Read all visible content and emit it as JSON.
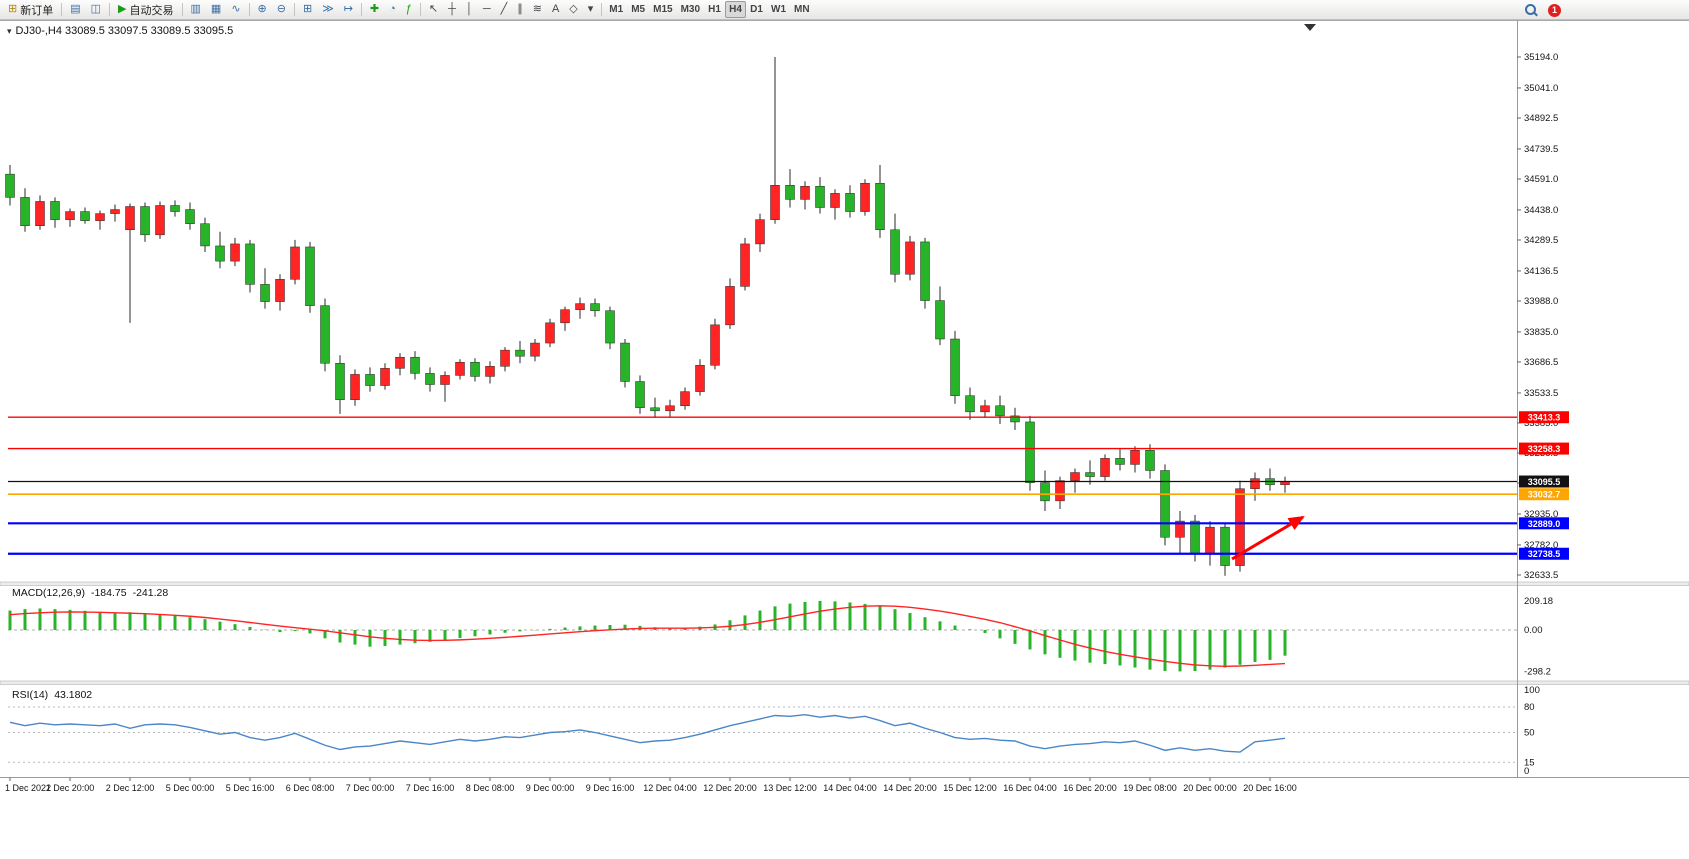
{
  "colors": {
    "bull": "#ff2525",
    "bear": "#28b428",
    "wick": "#2a2a2a",
    "candle_border": "#2a2a2a",
    "macd_histogram": "#28b428",
    "macd_signal": "#ff2525",
    "rsi_line": "#4a86c8",
    "trend_arrow": "#ff0000"
  },
  "toolbar": {
    "new_order_label": "新订单",
    "auto_trading_label": "自动交易",
    "notification_count": "1",
    "chart_icons": [
      {
        "name": "market-watch-button",
        "glyph": "▤",
        "color": "#3a6ea5"
      },
      {
        "name": "data-window-button",
        "glyph": "◫",
        "color": "#3a6ea5"
      }
    ],
    "tool_groups": [
      [
        {
          "name": "bar-chart-button",
          "glyph": "▥",
          "color": "#3a6ea5"
        },
        {
          "name": "candlestick-chart-button",
          "glyph": "▦",
          "color": "#3a6ea5"
        },
        {
          "name": "line-chart-button",
          "glyph": "∿",
          "color": "#3a6ea5"
        }
      ],
      [
        {
          "name": "zoom-in-button",
          "glyph": "⊕",
          "color": "#3a6ea5"
        },
        {
          "name": "zoom-out-button",
          "glyph": "⊖",
          "color": "#3a6ea5"
        }
      ],
      [
        {
          "name": "tile-windows-button",
          "glyph": "⊞",
          "color": "#3a6ea5"
        },
        {
          "name": "auto-scroll-button",
          "glyph": "≫",
          "color": "#3a6ea5"
        },
        {
          "name": "chart-shift-button",
          "glyph": "↦",
          "color": "#3a6ea5"
        }
      ],
      [
        {
          "name": "new-chart-button",
          "glyph": "✚",
          "color": "#1a9c1a"
        },
        {
          "name": "profiles-button",
          "glyph": "◔",
          "color": "#3a6ea5"
        },
        {
          "name": "indicators-button",
          "glyph": "ƒ",
          "color": "#1a9c1a"
        }
      ],
      [
        {
          "name": "cursor-button",
          "glyph": "↖",
          "color": "#444444"
        },
        {
          "name": "crosshair-button",
          "glyph": "┼",
          "color": "#444444"
        },
        {
          "name": "vertical-line-button",
          "glyph": "│",
          "color": "#444444"
        },
        {
          "name": "horizontal-line-button",
          "glyph": "─",
          "color": "#444444"
        },
        {
          "name": "trendline-button",
          "glyph": "╱",
          "color": "#444444"
        },
        {
          "name": "equidistant-channel-button",
          "glyph": "∥",
          "color": "#444444"
        },
        {
          "name": "fibonacci-button",
          "glyph": "≋",
          "color": "#444444"
        },
        {
          "name": "text-button",
          "glyph": "A",
          "color": "#444444"
        },
        {
          "name": "arrows-button",
          "glyph": "◇",
          "color": "#444444"
        },
        {
          "name": "shapes-dropdown-button",
          "glyph": "▾",
          "color": "#444444"
        }
      ]
    ],
    "timeframes": [
      "M1",
      "M5",
      "M15",
      "M30",
      "H1",
      "H4",
      "D1",
      "W1",
      "MN"
    ],
    "active_timeframe": "H4"
  },
  "chart": {
    "info_line": "DJ30-,H4 33089.5 33097.5 33089.5 33095.5",
    "symbol": "DJ30-",
    "period": "H4",
    "price_axis_ticks": [
      "35194.0",
      "35041.0",
      "34892.5",
      "34739.5",
      "34591.0",
      "34438.0",
      "34289.5",
      "34136.5",
      "33988.0",
      "33835.0",
      "33686.5",
      "33533.5",
      "33385.0",
      "33236.5",
      "33088.0",
      "32935.0",
      "32782.0",
      "32633.5"
    ],
    "levels": [
      {
        "name": "resistance-line-upper",
        "price": 33413.3,
        "label": "33413.3",
        "color": "#ff0000",
        "width": 1.4
      },
      {
        "name": "resistance-line-lower",
        "price": 33258.3,
        "label": "33258.3",
        "color": "#ff0000",
        "width": 1.4
      },
      {
        "name": "bid-price-line",
        "price": 33095.5,
        "label": "33095.5",
        "color": "#111111",
        "width": 1.2
      },
      {
        "name": "pivot-line-orange",
        "price": 33032.7,
        "label": "33032.7",
        "color": "#ffa500",
        "width": 1.6
      },
      {
        "name": "support-line-upper",
        "price": 32889.0,
        "label": "32889.0",
        "color": "#0000ff",
        "width": 2.2
      },
      {
        "name": "support-line-lower",
        "price": 32738.5,
        "label": "32738.5",
        "color": "#0000ff",
        "width": 2.2
      }
    ],
    "time_axis": [
      "1 Dec 2022",
      "1 Dec 20:00",
      "2 Dec 12:00",
      "5 Dec 00:00",
      "5 Dec 16:00",
      "6 Dec 08:00",
      "7 Dec 00:00",
      "7 Dec 16:00",
      "8 Dec 08:00",
      "9 Dec 00:00",
      "9 Dec 16:00",
      "12 Dec 04:00",
      "12 Dec 20:00",
      "13 Dec 12:00",
      "14 Dec 04:00",
      "14 Dec 20:00",
      "15 Dec 12:00",
      "16 Dec 04:00",
      "16 Dec 20:00",
      "19 Dec 08:00",
      "20 Dec 00:00",
      "20 Dec 16:00"
    ]
  },
  "chart_data": {
    "type": "candlestick",
    "symbol": "DJ30-",
    "timeframe": "H4",
    "price_range": [
      32633.5,
      35194.0
    ],
    "ohlc_current": {
      "open": 33089.5,
      "high": 33097.5,
      "low": 33089.5,
      "close": 33095.5
    },
    "candles": [
      [
        34615,
        34660,
        34460,
        34500
      ],
      [
        34500,
        34545,
        34330,
        34360
      ],
      [
        34360,
        34510,
        34340,
        34480
      ],
      [
        34480,
        34500,
        34350,
        34390
      ],
      [
        34390,
        34445,
        34355,
        34430
      ],
      [
        34430,
        34450,
        34370,
        34385
      ],
      [
        34385,
        34435,
        34340,
        34420
      ],
      [
        34420,
        34465,
        34380,
        34440
      ],
      [
        34340,
        34470,
        33880,
        34455
      ],
      [
        34455,
        34475,
        34280,
        34315
      ],
      [
        34315,
        34480,
        34295,
        34460
      ],
      [
        34460,
        34485,
        34405,
        34430
      ],
      [
        34440,
        34475,
        34340,
        34370
      ],
      [
        34370,
        34400,
        34230,
        34260
      ],
      [
        34260,
        34330,
        34150,
        34185
      ],
      [
        34185,
        34300,
        34160,
        34270
      ],
      [
        34270,
        34290,
        34030,
        34070
      ],
      [
        34070,
        34150,
        33950,
        33985
      ],
      [
        33985,
        34120,
        33940,
        34095
      ],
      [
        34095,
        34290,
        34070,
        34255
      ],
      [
        34255,
        34280,
        33930,
        33965
      ],
      [
        33965,
        34000,
        33640,
        33680
      ],
      [
        33680,
        33720,
        33430,
        33500
      ],
      [
        33500,
        33650,
        33470,
        33625
      ],
      [
        33625,
        33660,
        33540,
        33570
      ],
      [
        33570,
        33680,
        33550,
        33655
      ],
      [
        33655,
        33730,
        33620,
        33710
      ],
      [
        33710,
        33740,
        33600,
        33630
      ],
      [
        33630,
        33660,
        33540,
        33575
      ],
      [
        33575,
        33640,
        33490,
        33620
      ],
      [
        33620,
        33700,
        33600,
        33685
      ],
      [
        33685,
        33705,
        33590,
        33615
      ],
      [
        33615,
        33690,
        33580,
        33665
      ],
      [
        33665,
        33760,
        33640,
        33745
      ],
      [
        33745,
        33790,
        33680,
        33715
      ],
      [
        33715,
        33800,
        33690,
        33780
      ],
      [
        33780,
        33900,
        33760,
        33880
      ],
      [
        33880,
        33960,
        33840,
        33945
      ],
      [
        33945,
        34005,
        33900,
        33975
      ],
      [
        33975,
        34000,
        33910,
        33940
      ],
      [
        33940,
        33960,
        33750,
        33780
      ],
      [
        33780,
        33800,
        33560,
        33590
      ],
      [
        33590,
        33620,
        33430,
        33460
      ],
      [
        33460,
        33510,
        33410,
        33445
      ],
      [
        33445,
        33500,
        33415,
        33470
      ],
      [
        33470,
        33560,
        33450,
        33540
      ],
      [
        33540,
        33700,
        33520,
        33670
      ],
      [
        33670,
        33900,
        33650,
        33870
      ],
      [
        33870,
        34100,
        33850,
        34060
      ],
      [
        34060,
        34300,
        34040,
        34270
      ],
      [
        34270,
        34420,
        34230,
        34390
      ],
      [
        34390,
        35194,
        34370,
        34560
      ],
      [
        34560,
        34640,
        34450,
        34490
      ],
      [
        34490,
        34580,
        34440,
        34555
      ],
      [
        34555,
        34600,
        34420,
        34450
      ],
      [
        34450,
        34540,
        34390,
        34520
      ],
      [
        34520,
        34560,
        34400,
        34430
      ],
      [
        34430,
        34590,
        34410,
        34570
      ],
      [
        34570,
        34660,
        34300,
        34340
      ],
      [
        34340,
        34420,
        34080,
        34120
      ],
      [
        34120,
        34310,
        34090,
        34280
      ],
      [
        34280,
        34300,
        33950,
        33990
      ],
      [
        33990,
        34060,
        33770,
        33800
      ],
      [
        33800,
        33840,
        33480,
        33520
      ],
      [
        33520,
        33560,
        33400,
        33440
      ],
      [
        33440,
        33500,
        33410,
        33470
      ],
      [
        33470,
        33520,
        33380,
        33420
      ],
      [
        33420,
        33460,
        33350,
        33390
      ],
      [
        33390,
        33420,
        33050,
        33090
      ],
      [
        33090,
        33150,
        32950,
        33000
      ],
      [
        33000,
        33120,
        32960,
        33100
      ],
      [
        33100,
        33160,
        33040,
        33140
      ],
      [
        33140,
        33200,
        33080,
        33120
      ],
      [
        33120,
        33230,
        33100,
        33210
      ],
      [
        33210,
        33260,
        33150,
        33180
      ],
      [
        33180,
        33270,
        33140,
        33250
      ],
      [
        33250,
        33280,
        33110,
        33150
      ],
      [
        33150,
        33180,
        32780,
        32820
      ],
      [
        32820,
        32950,
        32740,
        32900
      ],
      [
        32900,
        32930,
        32700,
        32740
      ],
      [
        32740,
        32900,
        32680,
        32870
      ],
      [
        32870,
        32890,
        32630,
        32680
      ],
      [
        32680,
        33100,
        32650,
        33060
      ],
      [
        33060,
        33140,
        33000,
        33110
      ],
      [
        33110,
        33160,
        33050,
        33080
      ],
      [
        33080,
        33120,
        33040,
        33095.5
      ]
    ]
  },
  "macd": {
    "label": "MACD(12,26,9)",
    "value_main": "-184.75",
    "value_signal": "-241.28",
    "axis": [
      "209.18",
      "0.00",
      "-298.2"
    ],
    "histogram": [
      140,
      150,
      155,
      150,
      145,
      138,
      130,
      124,
      128,
      118,
      110,
      102,
      92,
      78,
      60,
      42,
      22,
      2,
      -15,
      -8,
      -25,
      -60,
      -90,
      -105,
      -120,
      -115,
      -105,
      -95,
      -85,
      -72,
      -58,
      -45,
      -32,
      -20,
      -10,
      -2,
      8,
      18,
      26,
      32,
      36,
      38,
      30,
      20,
      12,
      14,
      24,
      40,
      70,
      105,
      140,
      170,
      190,
      202,
      209,
      206,
      198,
      188,
      172,
      150,
      122,
      92,
      62,
      32,
      5,
      -22,
      -60,
      -100,
      -140,
      -175,
      -200,
      -220,
      -235,
      -245,
      -255,
      -270,
      -285,
      -295,
      -298,
      -295,
      -285,
      -270,
      -250,
      -230,
      -215,
      -184.75
    ],
    "signal": [
      110,
      118,
      124,
      128,
      130,
      129,
      127,
      124,
      121,
      117,
      112,
      106,
      99,
      90,
      79,
      67,
      54,
      41,
      28,
      17,
      6,
      -6,
      -20,
      -35,
      -49,
      -60,
      -68,
      -73,
      -75,
      -74,
      -71,
      -66,
      -60,
      -53,
      -45,
      -37,
      -28,
      -20,
      -12,
      -5,
      1,
      7,
      11,
      13,
      13,
      13,
      15,
      19,
      27,
      39,
      55,
      74,
      95,
      116,
      135,
      151,
      163,
      171,
      174,
      171,
      163,
      151,
      136,
      118,
      98,
      77,
      53,
      24,
      -7,
      -40,
      -72,
      -103,
      -130,
      -154,
      -175,
      -193,
      -210,
      -226,
      -240,
      -251,
      -258,
      -261,
      -259,
      -254,
      -248,
      -241.28
    ]
  },
  "rsi": {
    "label": "RSI(14)",
    "value": "43.1802",
    "axis": [
      "100",
      "80",
      "50",
      "15",
      "0"
    ],
    "level_lines": [
      80,
      50,
      15
    ],
    "values": [
      62,
      58,
      61,
      59,
      60,
      59,
      58,
      60,
      55,
      59,
      60,
      59,
      56,
      52,
      48,
      50,
      44,
      41,
      44,
      49,
      42,
      35,
      30,
      33,
      34,
      37,
      40,
      38,
      36,
      39,
      42,
      40,
      42,
      45,
      44,
      47,
      50,
      51,
      53,
      50,
      46,
      42,
      38,
      40,
      41,
      44,
      48,
      53,
      58,
      62,
      66,
      70,
      69,
      71,
      68,
      70,
      67,
      69,
      64,
      58,
      61,
      55,
      50,
      44,
      42,
      43,
      41,
      40,
      34,
      31,
      34,
      36,
      37,
      39,
      38,
      40,
      35,
      29,
      32,
      29,
      31,
      28,
      27,
      39,
      41,
      43.18
    ]
  }
}
